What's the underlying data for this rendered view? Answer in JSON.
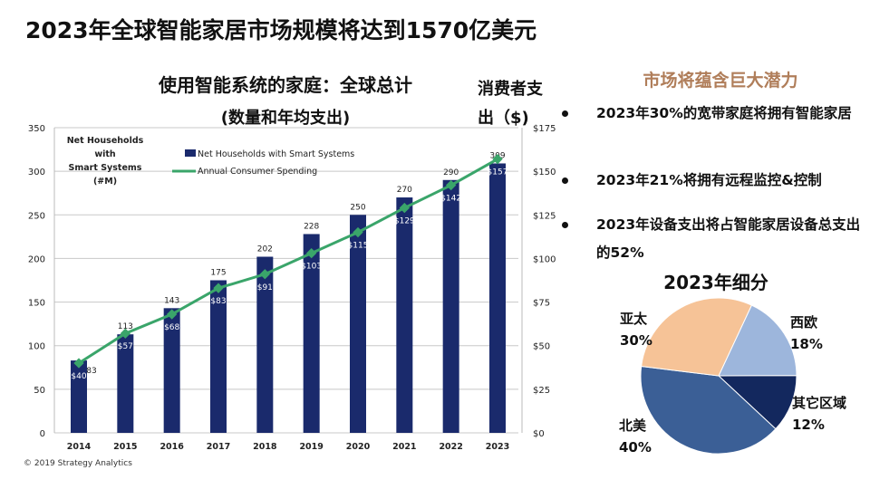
{
  "title": "2023年全球智能家居市场规模将达到1570亿美元",
  "chart_data": [
    {
      "type": "bar+line",
      "title": "使用智能系统的家庭：全球总计",
      "subtitle": "(数量和年均支出)",
      "ylabel": "Net Households with Smart Systems (#M)",
      "y2label": "消费者支出（$)",
      "categories": [
        "2014",
        "2015",
        "2016",
        "2017",
        "2018",
        "2019",
        "2020",
        "2021",
        "2022",
        "2023"
      ],
      "ylim": [
        0,
        350
      ],
      "yticks": [
        "0",
        "50",
        "100",
        "150",
        "200",
        "250",
        "300",
        "350"
      ],
      "y2lim": [
        0,
        175
      ],
      "y2ticks": [
        "$0",
        "$25",
        "$50",
        "$75",
        "$100",
        "$125",
        "$150",
        "$175"
      ],
      "grid": true,
      "legend_position": "top",
      "series": [
        {
          "name": "Net Households with Smart Systems",
          "kind": "bar",
          "axis": "left",
          "color": "#1a2a6c",
          "values": [
            83,
            113,
            143,
            175,
            202,
            228,
            250,
            270,
            290,
            309
          ],
          "labels": [
            "83",
            "113",
            "143",
            "175",
            "202",
            "228",
            "250",
            "270",
            "290",
            "309"
          ]
        },
        {
          "name": "Annual Consumer Spending",
          "kind": "line",
          "axis": "right",
          "color": "#3aa56a",
          "values": [
            40,
            57,
            68,
            83,
            91,
            103,
            115,
            129,
            142,
            157
          ],
          "labels": [
            "$40",
            "$57",
            "$68",
            "$83",
            "$91",
            "$103",
            "$115",
            "$129",
            "$142",
            "$157"
          ]
        }
      ],
      "axis_note": [
        "Net Households",
        "with",
        "Smart Systems",
        "(#M)"
      ],
      "source": "© 2019 Strategy Analytics"
    },
    {
      "type": "pie",
      "title": "2023年细分",
      "slices": [
        {
          "label": "西欧",
          "value": 18,
          "pct": "18%",
          "color": "#9db6dc"
        },
        {
          "label": "其它区域",
          "value": 12,
          "pct": "12%",
          "color": "#13285e"
        },
        {
          "label": "北美",
          "value": 40,
          "pct": "40%",
          "color": "#3b5f96"
        },
        {
          "label": "亚太",
          "value": 30,
          "pct": "30%",
          "color": "#f6c397"
        }
      ]
    }
  ],
  "chart_title_line1": "使用智能系统的家庭：全球总计",
  "chart_title_line2": "(数量和年均支出)",
  "right_axis_label_1": "消费者支",
  "right_axis_label_2": "出（$)",
  "panel": {
    "title": "市场将蕴含巨大潜力",
    "bullets": [
      "2023年30%的宽带家庭将拥有智能家居",
      "2023年21%将拥有远程监控&控制",
      "2023年设备支出将占智能家居设备总支出的52%"
    ]
  }
}
